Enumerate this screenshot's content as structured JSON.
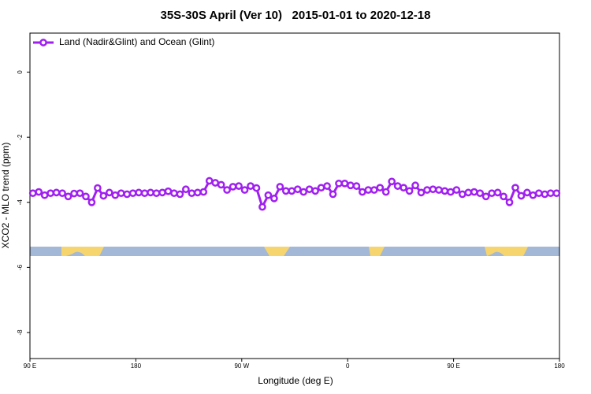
{
  "chart_data": {
    "type": "line",
    "title": "35S-30S April (Ver 10)   2015-01-01 to 2020-12-18",
    "x_label": "Longitude (deg E)",
    "y_label": "XCO2 - MLO trend (ppm)",
    "xlim": [
      90,
      540
    ],
    "ylim": [
      -8.8,
      1.2
    ],
    "xticks": [
      {
        "value": 90,
        "label": "90 E"
      },
      180,
      {
        "value": 270,
        "label": "90 W"
      },
      {
        "value": 360,
        "label": "0"
      },
      {
        "value": 450,
        "label": "90 E"
      },
      {
        "value": 540,
        "label": "180"
      }
    ],
    "yticks": [
      -8,
      -6,
      -4,
      -2,
      0
    ],
    "legend": "top-left",
    "series": [
      {
        "name": "Land (Nadir&Glint) and Ocean (Glint)",
        "color": "#a020f0",
        "x": [
          92.5,
          97.5,
          102.5,
          107.5,
          112.5,
          117.5,
          122.5,
          127.5,
          132.5,
          137.5,
          142.5,
          147.5,
          152.5,
          157.5,
          162.5,
          167.5,
          172.5,
          177.5,
          182.5,
          187.5,
          192.5,
          197.5,
          202.5,
          207.5,
          212.5,
          217.5,
          222.5,
          227.5,
          232.5,
          237.5,
          242.5,
          247.5,
          252.5,
          257.5,
          262.5,
          267.5,
          272.5,
          277.5,
          282.5,
          287.5,
          292.5,
          297.5,
          302.5,
          307.5,
          312.5,
          317.5,
          322.5,
          327.5,
          332.5,
          337.5,
          342.5,
          347.5,
          352.5,
          357.5,
          362.5,
          367.5,
          372.5,
          377.5,
          382.5,
          387.5,
          392.5,
          397.5,
          402.5,
          407.5,
          412.5,
          417.5,
          422.5,
          427.5,
          432.5,
          437.5,
          442.5,
          447.5,
          452.5,
          457.5,
          462.5,
          467.5,
          472.5,
          477.5,
          482.5,
          487.5,
          492.5,
          497.5,
          502.5,
          507.5,
          512.5,
          517.5,
          522.5,
          527.5,
          532.5,
          537.5
        ],
        "values": [
          -3.72,
          -3.68,
          -3.78,
          -3.72,
          -3.7,
          -3.72,
          -3.82,
          -3.73,
          -3.72,
          -3.82,
          -4.0,
          -3.56,
          -3.8,
          -3.7,
          -3.78,
          -3.72,
          -3.75,
          -3.72,
          -3.7,
          -3.72,
          -3.7,
          -3.72,
          -3.7,
          -3.66,
          -3.72,
          -3.75,
          -3.6,
          -3.72,
          -3.7,
          -3.68,
          -3.34,
          -3.4,
          -3.46,
          -3.62,
          -3.52,
          -3.5,
          -3.62,
          -3.5,
          -3.56,
          -4.14,
          -3.78,
          -3.88,
          -3.52,
          -3.65,
          -3.65,
          -3.6,
          -3.68,
          -3.6,
          -3.65,
          -3.55,
          -3.5,
          -3.75,
          -3.42,
          -3.42,
          -3.48,
          -3.5,
          -3.68,
          -3.62,
          -3.62,
          -3.55,
          -3.68,
          -3.36,
          -3.5,
          -3.55,
          -3.65,
          -3.48,
          -3.7,
          -3.62,
          -3.6,
          -3.62,
          -3.65,
          -3.68,
          -3.62,
          -3.75,
          -3.7,
          -3.68,
          -3.72,
          -3.82,
          -3.72,
          -3.7,
          -3.82,
          -4.0,
          -3.55,
          -3.8,
          -3.7,
          -3.78,
          -3.72,
          -3.75,
          -3.72,
          -3.72
        ]
      }
    ]
  }
}
